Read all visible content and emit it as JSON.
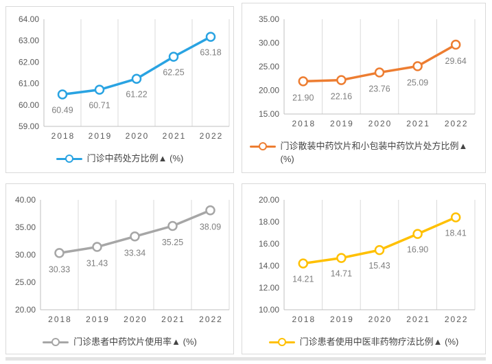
{
  "style": {
    "grid_color": "#D9D9D9",
    "axis_color": "#BFBFBF",
    "tick_text_color": "#595959",
    "data_label_color": "#7F7F7F",
    "legend_text_color": "#444444",
    "panel_border_color": "#D9D9D9"
  },
  "chart_data": [
    {
      "type": "line",
      "title": "",
      "legend": "门诊中药处方比例▲ (%)",
      "color": "#29A3E2",
      "categories": [
        "2018",
        "2019",
        "2020",
        "2021",
        "2022"
      ],
      "values": [
        60.49,
        60.71,
        61.22,
        62.25,
        63.18
      ],
      "ylim": [
        59,
        64
      ],
      "yticks": [
        64,
        63,
        62,
        61,
        60,
        59
      ],
      "xlabel": "",
      "ylabel": "",
      "grid": "vertical",
      "legend_position": "bottom",
      "marker": "circle",
      "number_format": "0.00"
    },
    {
      "type": "line",
      "title": "",
      "legend": "门诊散装中药饮片和小包装中药饮片处方比例▲ (%)",
      "color": "#ED7D31",
      "categories": [
        "2018",
        "2019",
        "2020",
        "2021",
        "2022"
      ],
      "values": [
        21.9,
        22.16,
        23.76,
        25.09,
        29.64
      ],
      "ylim": [
        15,
        35
      ],
      "yticks": [
        35,
        30,
        25,
        20,
        15
      ],
      "xlabel": "",
      "ylabel": "",
      "grid": "vertical",
      "legend_position": "bottom",
      "marker": "circle",
      "number_format": "0.00"
    },
    {
      "type": "line",
      "title": "",
      "legend": "门诊患者中药饮片使用率▲ (%)",
      "color": "#A6A6A6",
      "categories": [
        "2018",
        "2019",
        "2020",
        "2021",
        "2022"
      ],
      "values": [
        30.33,
        31.43,
        33.34,
        35.25,
        38.09
      ],
      "ylim": [
        20,
        40
      ],
      "yticks": [
        40,
        35,
        30,
        25,
        20
      ],
      "xlabel": "",
      "ylabel": "",
      "grid": "vertical",
      "legend_position": "bottom",
      "marker": "circle",
      "number_format": "0.00"
    },
    {
      "type": "line",
      "title": "",
      "legend": "门诊患者使用中医非药物疗法比例▲ (%)",
      "color": "#FFC000",
      "categories": [
        "2018",
        "2019",
        "2020",
        "2021",
        "2022"
      ],
      "values": [
        14.21,
        14.71,
        15.43,
        16.9,
        18.41
      ],
      "ylim": [
        10,
        20
      ],
      "yticks": [
        20,
        18,
        16,
        14,
        12,
        10
      ],
      "xlabel": "",
      "ylabel": "",
      "grid": "vertical",
      "legend_position": "bottom",
      "marker": "circle",
      "number_format": "0.00"
    }
  ]
}
